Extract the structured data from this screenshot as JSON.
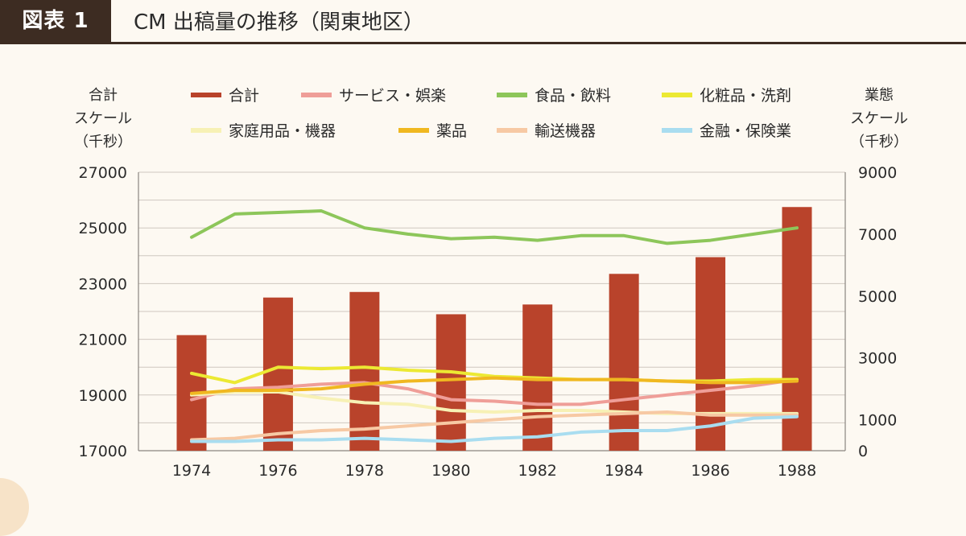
{
  "header": {
    "badge": "図表 1",
    "title": "CM 出稿量の推移（関東地区）"
  },
  "chart_data": {
    "type": "bar+line",
    "left_axis": {
      "title_lines": [
        "合計",
        "スケール",
        "（千秒）"
      ],
      "range": [
        17000,
        27000
      ],
      "ticks": [
        27000,
        25000,
        23000,
        21000,
        19000,
        17000
      ]
    },
    "right_axis": {
      "title_lines": [
        "業態",
        "スケール",
        "（千秒）"
      ],
      "range": [
        0,
        9000
      ],
      "ticks": [
        9000,
        7000,
        5000,
        3000,
        1000,
        0
      ]
    },
    "x": [
      1974,
      1975,
      1976,
      1977,
      1978,
      1979,
      1980,
      1981,
      1982,
      1983,
      1984,
      1985,
      1986,
      1987,
      1988
    ],
    "x_tick_labels": [
      "1974",
      "1976",
      "1978",
      "1980",
      "1982",
      "1984",
      "1986",
      "1988"
    ],
    "bars": {
      "name": "合計",
      "color": "#b9432b",
      "axis": "left",
      "x": [
        1974,
        1976,
        1978,
        1980,
        1982,
        1984,
        1986,
        1988
      ],
      "values": [
        21150,
        22500,
        22700,
        21900,
        22250,
        23350,
        23950,
        25750
      ]
    },
    "series": [
      {
        "name": "サービス・娯楽",
        "color": "#ef9e98",
        "axis": "right",
        "values": [
          1650,
          2000,
          2050,
          2150,
          2200,
          2000,
          1650,
          1600,
          1500,
          1500,
          1650,
          1800,
          1950,
          2100,
          2300
        ]
      },
      {
        "name": "食品・飲料",
        "color": "#8dc65a",
        "axis": "right",
        "values": [
          6900,
          7650,
          7700,
          7750,
          7200,
          7000,
          6850,
          6900,
          6800,
          6950,
          6950,
          6700,
          6800,
          7000,
          7200
        ]
      },
      {
        "name": "化粧品・洗剤",
        "color": "#ece933",
        "axis": "right",
        "values": [
          2500,
          2200,
          2700,
          2650,
          2700,
          2600,
          2550,
          2400,
          2350,
          2300,
          2300,
          2250,
          2250,
          2300,
          2300
        ]
      },
      {
        "name": "家庭用品・機器",
        "color": "#f7f1b5",
        "axis": "right",
        "values": [
          1800,
          1900,
          1900,
          1700,
          1550,
          1500,
          1300,
          1250,
          1300,
          1300,
          1250,
          1200,
          1200,
          1200,
          1200
        ]
      },
      {
        "name": "薬品",
        "color": "#f0b820",
        "axis": "right",
        "values": [
          1850,
          1950,
          1950,
          2000,
          2150,
          2250,
          2300,
          2350,
          2300,
          2300,
          2300,
          2250,
          2200,
          2200,
          2250
        ]
      },
      {
        "name": "輸送機器",
        "color": "#f7c9a4",
        "axis": "right",
        "values": [
          350,
          400,
          550,
          650,
          700,
          800,
          900,
          1000,
          1100,
          1150,
          1200,
          1250,
          1150,
          1150,
          1150
        ]
      },
      {
        "name": "金融・保険業",
        "color": "#a9ddf0",
        "axis": "right",
        "values": [
          300,
          300,
          350,
          350,
          400,
          350,
          300,
          400,
          450,
          600,
          650,
          650,
          800,
          1050,
          1100
        ]
      }
    ],
    "legend": {
      "placement": "top",
      "entries": [
        "合計",
        "サービス・娯楽",
        "食品・飲料",
        "化粧品・洗剤",
        "家庭用品・機器",
        "薬品",
        "輸送機器",
        "金融・保険業"
      ]
    },
    "grid": true
  }
}
